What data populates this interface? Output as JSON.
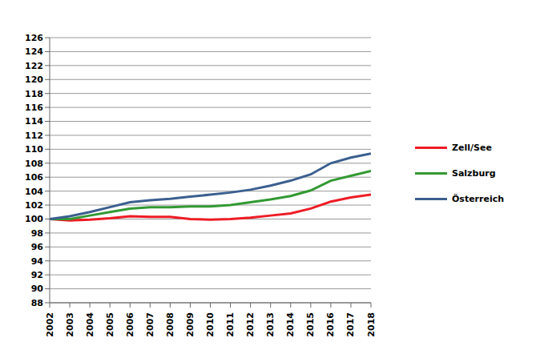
{
  "chart_data": {
    "type": "line",
    "x": [
      2002,
      2003,
      2004,
      2005,
      2006,
      2007,
      2008,
      2009,
      2010,
      2011,
      2012,
      2013,
      2014,
      2015,
      2016,
      2017,
      2018
    ],
    "series": [
      {
        "name": "Zell/See",
        "color": "#ee1c25",
        "values": [
          100,
          99.8,
          99.9,
          100.1,
          100.4,
          100.3,
          100.3,
          100.0,
          99.9,
          100.0,
          100.2,
          100.5,
          100.8,
          101.5,
          102.5,
          103.1,
          103.5
        ]
      },
      {
        "name": "Salzburg",
        "color": "#339933",
        "values": [
          100,
          100.0,
          100.5,
          101.0,
          101.5,
          101.7,
          101.7,
          101.8,
          101.8,
          102.0,
          102.4,
          102.8,
          103.3,
          104.1,
          105.5,
          106.2,
          106.9
        ]
      },
      {
        "name": "Österreich",
        "color": "#3b5f8f",
        "values": [
          100,
          100.4,
          101.0,
          101.7,
          102.4,
          102.7,
          102.9,
          103.2,
          103.5,
          103.8,
          104.2,
          104.8,
          105.5,
          106.4,
          108.0,
          108.8,
          109.4
        ]
      }
    ],
    "xlim": [
      2002,
      2018
    ],
    "xticks": [
      2002,
      2003,
      2004,
      2005,
      2006,
      2007,
      2008,
      2009,
      2010,
      2011,
      2012,
      2013,
      2014,
      2015,
      2016,
      2017,
      2018
    ],
    "ylim": [
      88,
      126
    ],
    "yticks": [
      88,
      90,
      92,
      94,
      96,
      98,
      100,
      102,
      104,
      106,
      108,
      110,
      112,
      114,
      116,
      118,
      120,
      122,
      124,
      126
    ],
    "grid": true,
    "legend": "right"
  }
}
